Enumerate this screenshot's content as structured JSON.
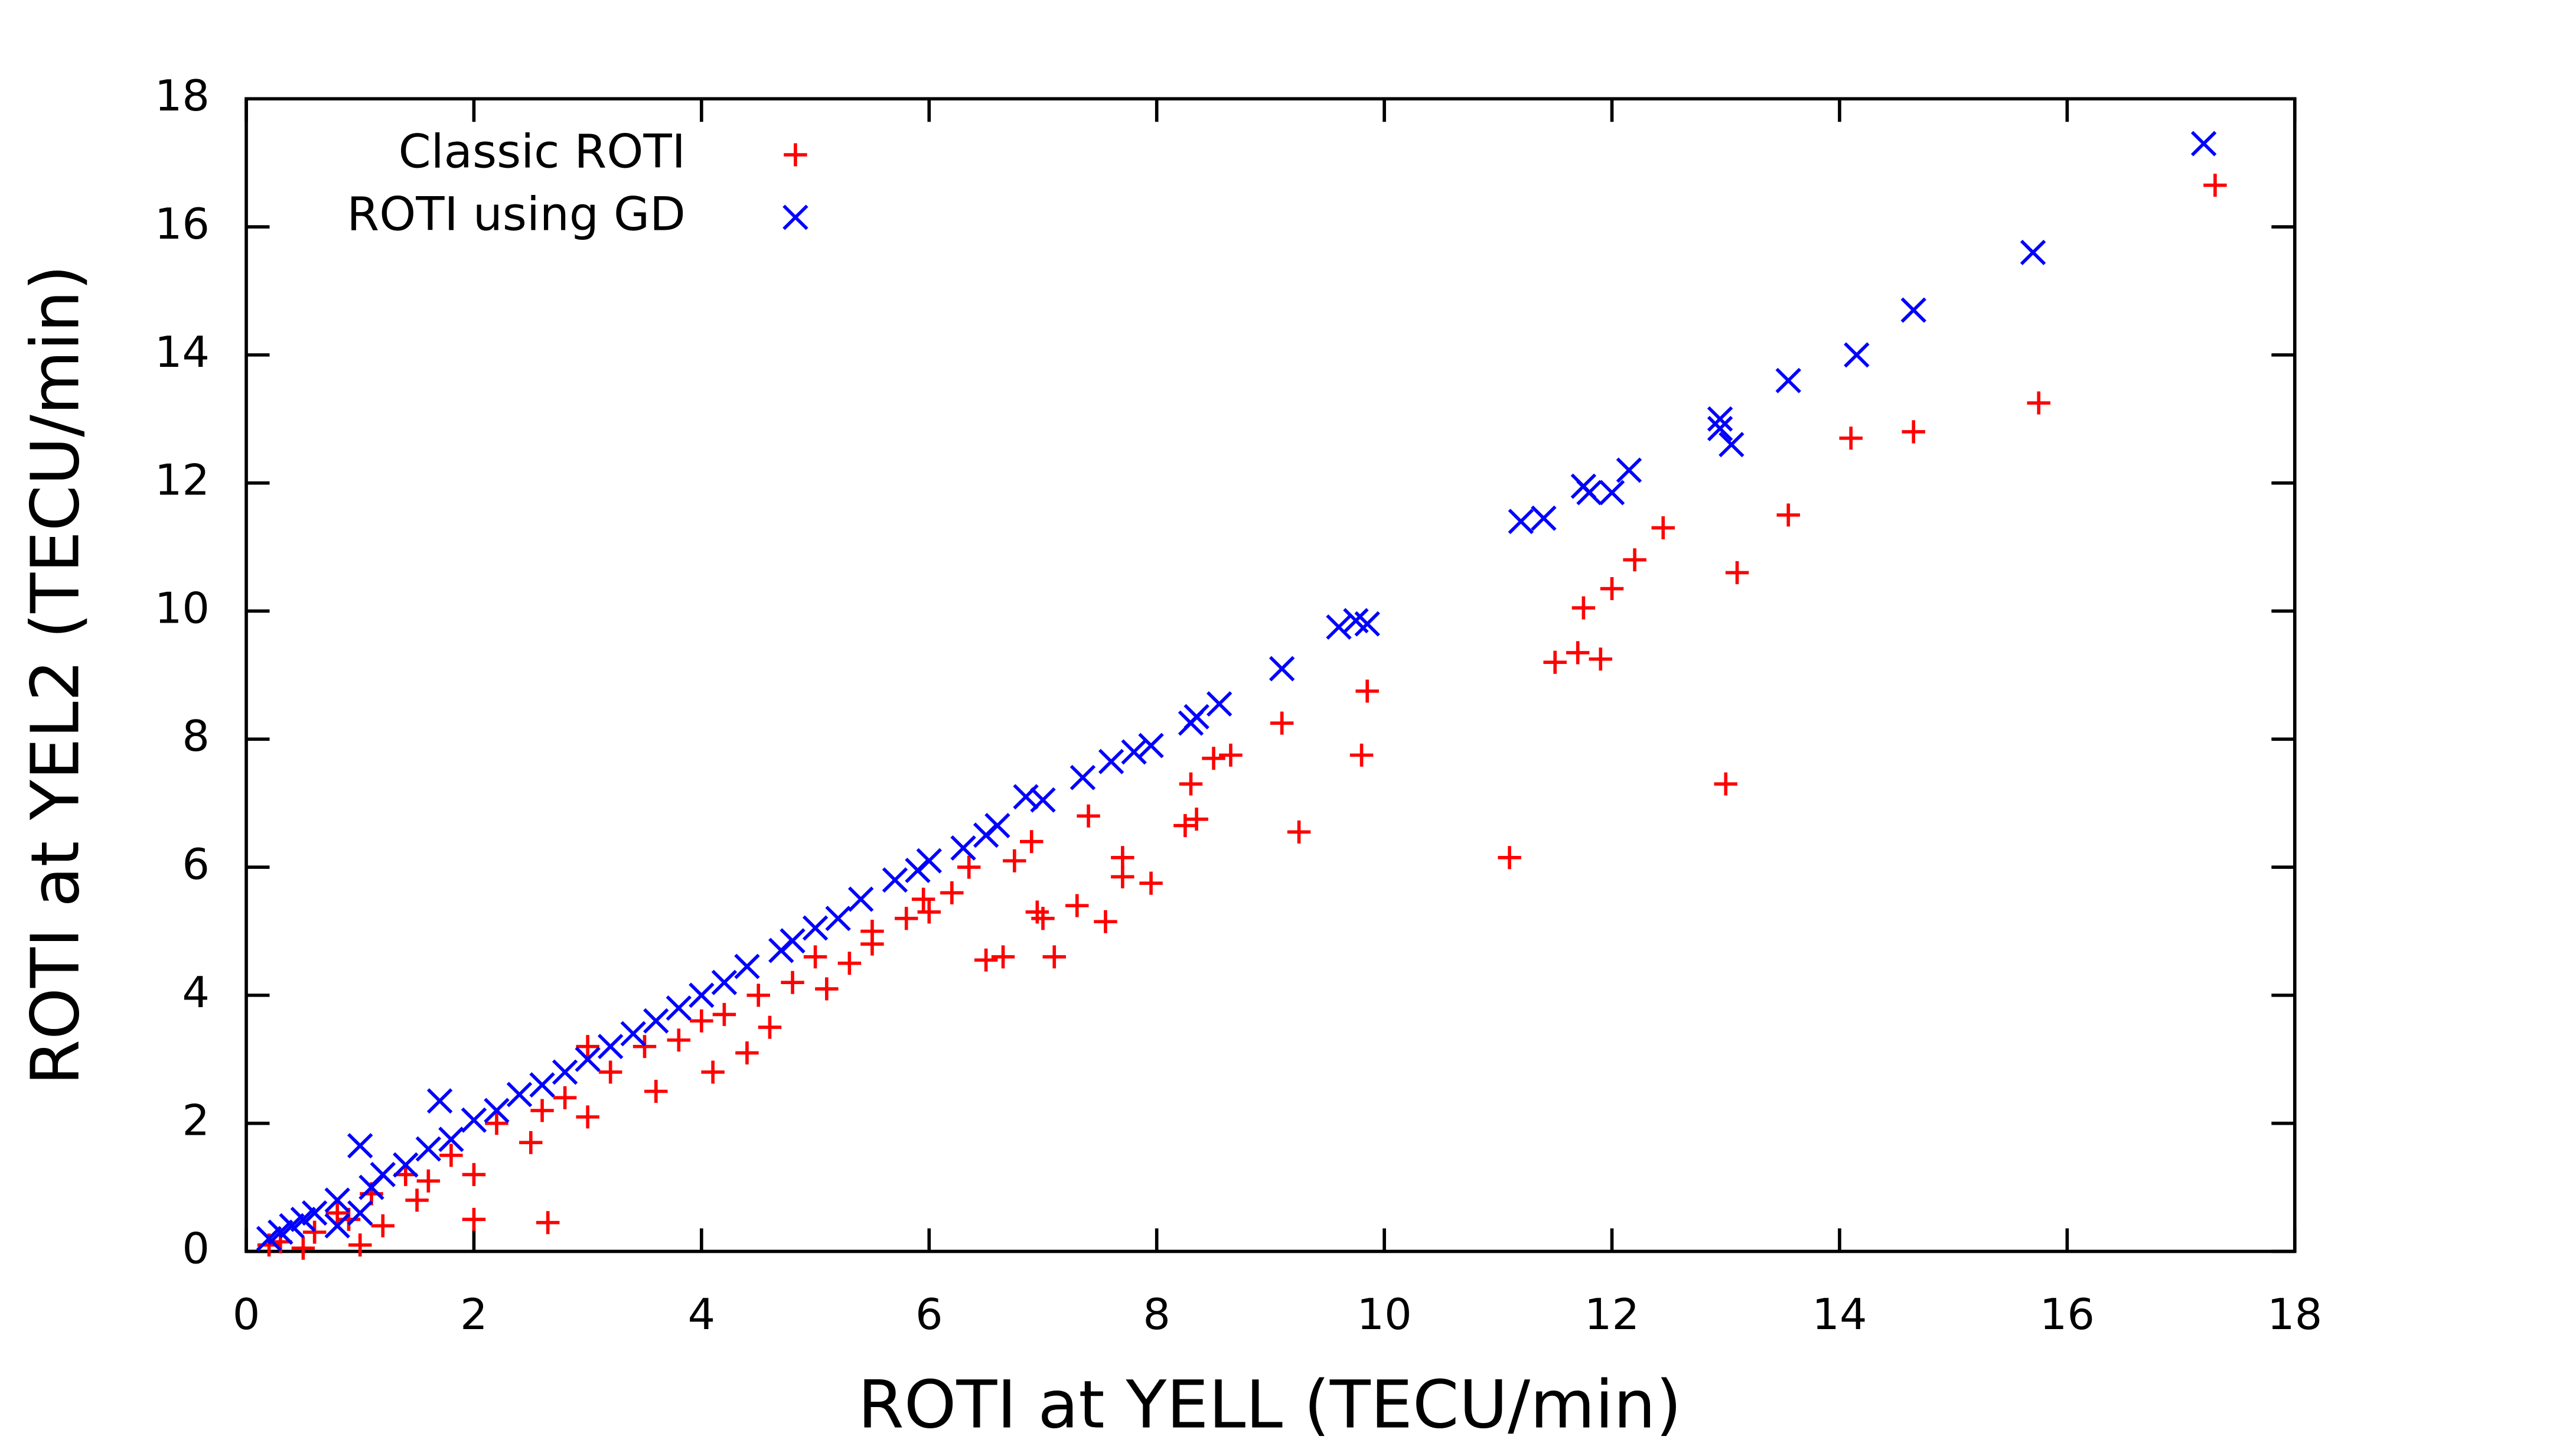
{
  "chart_data": {
    "type": "scatter",
    "x_label": "ROTI at YELL (TECU/min)",
    "y_label": "ROTI at YEL2 (TECU/min)",
    "xlim": [
      0,
      18
    ],
    "ylim": [
      0,
      18
    ],
    "xticks": [
      0,
      2,
      4,
      6,
      8,
      10,
      12,
      14,
      16,
      18
    ],
    "yticks": [
      0,
      2,
      4,
      6,
      8,
      10,
      12,
      14,
      16,
      18
    ],
    "legend": "top-left",
    "series": [
      {
        "name": "Classic ROTI",
        "color": "#ff0000",
        "marker": "plus",
        "x": [
          17.3,
          15.75,
          14.65,
          14.1,
          13.55,
          13.1,
          13.0,
          12.45,
          12.2,
          12.0,
          11.75,
          11.7,
          11.5,
          11.9,
          11.1,
          9.85,
          9.8,
          9.1,
          9.25,
          8.65,
          8.3,
          8.35,
          8.25,
          7.95,
          7.7,
          7.7,
          7.55,
          7.3,
          7.0,
          6.95,
          7.1,
          6.65,
          6.5,
          6.75,
          6.35,
          5.95,
          5.5,
          5.1,
          4.6,
          4.1,
          3.6,
          3.0,
          2.5,
          2.0,
          1.5,
          1.2,
          2.0,
          2.65,
          1.0,
          0.5,
          3.0,
          4.0,
          6.0,
          8.5,
          5.0,
          5.5,
          4.5,
          3.5,
          2.8,
          2.2,
          1.8,
          1.4,
          1.1,
          0.8,
          0.6,
          0.3,
          0.2,
          6.2,
          5.8,
          4.8,
          4.2,
          3.8,
          3.2,
          2.6,
          7.4,
          6.9,
          1.6,
          0.9,
          4.4,
          5.3
        ],
        "y": [
          16.65,
          13.25,
          12.8,
          12.7,
          11.5,
          10.6,
          7.3,
          11.3,
          10.8,
          10.35,
          10.05,
          9.35,
          9.2,
          9.25,
          6.15,
          8.75,
          7.75,
          8.25,
          6.55,
          7.75,
          7.3,
          6.75,
          6.65,
          5.75,
          6.15,
          5.85,
          5.15,
          5.4,
          5.2,
          5.3,
          4.6,
          4.6,
          4.55,
          6.1,
          6.0,
          5.5,
          4.8,
          4.1,
          3.5,
          2.8,
          2.5,
          2.1,
          1.7,
          1.2,
          0.8,
          0.4,
          0.5,
          0.45,
          0.1,
          0.05,
          3.2,
          3.6,
          5.3,
          7.7,
          4.6,
          5.0,
          4.0,
          3.2,
          2.4,
          2.0,
          1.5,
          1.2,
          0.9,
          0.6,
          0.3,
          0.15,
          0.1,
          5.6,
          5.2,
          4.2,
          3.7,
          3.3,
          2.8,
          2.2,
          6.8,
          6.4,
          1.1,
          0.5,
          3.1,
          4.5
        ]
      },
      {
        "name": "ROTI using GD",
        "color": "#0000ff",
        "marker": "cross",
        "x": [
          17.2,
          15.7,
          14.65,
          14.15,
          13.55,
          12.95,
          12.95,
          13.05,
          12.15,
          11.75,
          11.8,
          12.0,
          11.4,
          11.2,
          9.85,
          9.75,
          9.6,
          9.1,
          8.55,
          8.35,
          8.3,
          7.95,
          7.8,
          7.6,
          7.35,
          7.0,
          6.85,
          6.6,
          6.3,
          6.0,
          5.7,
          5.4,
          5.0,
          4.7,
          4.4,
          4.0,
          3.6,
          3.2,
          2.8,
          2.4,
          2.0,
          1.7,
          1.0,
          1.6,
          1.2,
          0.8,
          0.5,
          0.3,
          0.2,
          1.0,
          0.8,
          5.2,
          4.8,
          3.8,
          3.4,
          3.0,
          2.6,
          2.2,
          1.8,
          1.4,
          0.6,
          0.4,
          6.5,
          5.9,
          4.2,
          1.1
        ],
        "y": [
          17.3,
          15.6,
          14.7,
          14.0,
          13.6,
          13.0,
          12.85,
          12.6,
          12.2,
          11.95,
          11.85,
          11.85,
          11.45,
          11.4,
          9.8,
          9.85,
          9.75,
          9.1,
          8.55,
          8.35,
          8.25,
          7.9,
          7.8,
          7.65,
          7.4,
          7.05,
          7.1,
          6.65,
          6.3,
          6.1,
          5.8,
          5.5,
          5.05,
          4.7,
          4.45,
          4.0,
          3.6,
          3.2,
          2.8,
          2.45,
          2.05,
          2.35,
          1.65,
          1.6,
          1.2,
          0.8,
          0.5,
          0.3,
          0.2,
          0.6,
          0.4,
          5.2,
          4.85,
          3.8,
          3.4,
          3.0,
          2.6,
          2.2,
          1.75,
          1.35,
          0.6,
          0.4,
          6.5,
          5.95,
          4.2,
          1.0
        ]
      }
    ]
  }
}
